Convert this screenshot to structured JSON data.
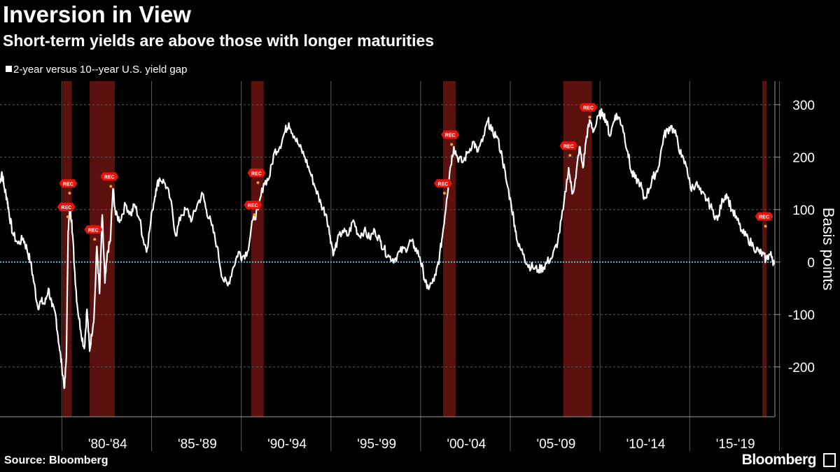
{
  "title": "Inversion in View",
  "subtitle": "Short-term yields are above those with longer maturities",
  "legend": {
    "label": "2-year versus 10--year U.S. yield gap"
  },
  "source": "Source: Bloomberg",
  "brand": "Bloomberg",
  "recession_label": "REC",
  "colors": {
    "background": "#000000",
    "line": "#ffffff",
    "zero_line": "#3fc6e0",
    "recession": "#6b1410",
    "marker": "#e8140c",
    "dot": "#f0a020"
  },
  "chart_data": {
    "type": "line",
    "title": "Inversion in View",
    "subtitle": "Short-term yields are above those with longer maturities",
    "ylabel": "Basis points",
    "xlabel": "",
    "ylim": [
      -295,
      345
    ],
    "xlim": [
      1976.5,
      2019.7
    ],
    "yticks": [
      -200,
      -100,
      0,
      100,
      200,
      300
    ],
    "ytick_labels": [
      "-200",
      "-100",
      "0",
      "100",
      "200",
      "300"
    ],
    "xtick_labels": [
      "'80-'84",
      "'85-'89",
      "'90-'94",
      "'95-'99",
      "'00-'04",
      "'05-'09",
      "'10-'14",
      "'15-'19"
    ],
    "zero_line": 0,
    "recessions": [
      [
        1980.0,
        1980.5
      ],
      [
        1981.5,
        1982.9
      ],
      [
        1990.5,
        1991.2
      ],
      [
        2001.2,
        2001.9
      ],
      [
        2007.9,
        2009.5
      ],
      [
        2019.0,
        2019.25
      ]
    ],
    "recession_markers": [
      {
        "x": 1980.3,
        "y": 150
      },
      {
        "x": 1980.2,
        "y": 105
      },
      {
        "x": 1981.7,
        "y": 62
      },
      {
        "x": 1982.6,
        "y": 163
      },
      {
        "x": 1990.6,
        "y": 109
      },
      {
        "x": 1990.8,
        "y": 170
      },
      {
        "x": 2001.2,
        "y": 150
      },
      {
        "x": 2001.6,
        "y": 243
      },
      {
        "x": 2008.2,
        "y": 222
      },
      {
        "x": 2009.3,
        "y": 295
      },
      {
        "x": 2019.1,
        "y": 87
      }
    ],
    "series": [
      {
        "name": "2-year versus 10--year U.S. yield gap",
        "points": [
          [
            1976.5,
            150
          ],
          [
            1976.6,
            172
          ],
          [
            1976.75,
            140
          ],
          [
            1976.9,
            120
          ],
          [
            1977.0,
            95
          ],
          [
            1977.2,
            55
          ],
          [
            1977.5,
            35
          ],
          [
            1977.8,
            45
          ],
          [
            1978.0,
            25
          ],
          [
            1978.2,
            0
          ],
          [
            1978.4,
            -40
          ],
          [
            1978.6,
            -85
          ],
          [
            1978.8,
            -75
          ],
          [
            1979.0,
            -80
          ],
          [
            1979.2,
            -50
          ],
          [
            1979.4,
            -85
          ],
          [
            1979.6,
            -100
          ],
          [
            1979.8,
            -160
          ],
          [
            1979.95,
            -200
          ],
          [
            1980.1,
            -240
          ],
          [
            1980.2,
            -180
          ],
          [
            1980.3,
            60
          ],
          [
            1980.4,
            100
          ],
          [
            1980.5,
            80
          ],
          [
            1980.65,
            -10
          ],
          [
            1980.8,
            -80
          ],
          [
            1981.0,
            -130
          ],
          [
            1981.2,
            -165
          ],
          [
            1981.35,
            -90
          ],
          [
            1981.5,
            -170
          ],
          [
            1981.6,
            -140
          ],
          [
            1981.75,
            -100
          ],
          [
            1981.9,
            30
          ],
          [
            1982.05,
            -60
          ],
          [
            1982.2,
            90
          ],
          [
            1982.35,
            -40
          ],
          [
            1982.5,
            20
          ],
          [
            1982.65,
            40
          ],
          [
            1982.8,
            140
          ],
          [
            1982.95,
            90
          ],
          [
            1983.2,
            80
          ],
          [
            1983.5,
            110
          ],
          [
            1983.8,
            90
          ],
          [
            1984.0,
            110
          ],
          [
            1984.3,
            80
          ],
          [
            1984.5,
            40
          ],
          [
            1984.7,
            25
          ],
          [
            1985.0,
            100
          ],
          [
            1985.2,
            140
          ],
          [
            1985.4,
            160
          ],
          [
            1985.7,
            150
          ],
          [
            1986.0,
            120
          ],
          [
            1986.3,
            50
          ],
          [
            1986.6,
            90
          ],
          [
            1986.9,
            100
          ],
          [
            1987.2,
            80
          ],
          [
            1987.5,
            110
          ],
          [
            1987.8,
            130
          ],
          [
            1988.0,
            100
          ],
          [
            1988.3,
            70
          ],
          [
            1988.6,
            30
          ],
          [
            1988.9,
            -30
          ],
          [
            1989.2,
            -45
          ],
          [
            1989.5,
            -10
          ],
          [
            1989.8,
            20
          ],
          [
            1990.0,
            10
          ],
          [
            1990.3,
            20
          ],
          [
            1990.6,
            80
          ],
          [
            1990.9,
            100
          ],
          [
            1991.2,
            150
          ],
          [
            1991.5,
            160
          ],
          [
            1991.8,
            210
          ],
          [
            1992.1,
            220
          ],
          [
            1992.4,
            250
          ],
          [
            1992.6,
            265
          ],
          [
            1992.9,
            240
          ],
          [
            1993.2,
            220
          ],
          [
            1993.5,
            200
          ],
          [
            1993.8,
            170
          ],
          [
            1994.1,
            140
          ],
          [
            1994.4,
            110
          ],
          [
            1994.7,
            90
          ],
          [
            1994.9,
            50
          ],
          [
            1995.1,
            15
          ],
          [
            1995.3,
            40
          ],
          [
            1995.6,
            60
          ],
          [
            1995.9,
            50
          ],
          [
            1996.2,
            80
          ],
          [
            1996.5,
            50
          ],
          [
            1996.8,
            60
          ],
          [
            1997.1,
            45
          ],
          [
            1997.4,
            60
          ],
          [
            1997.7,
            40
          ],
          [
            1997.9,
            25
          ],
          [
            1998.2,
            10
          ],
          [
            1998.5,
            5
          ],
          [
            1998.8,
            20
          ],
          [
            1999.1,
            25
          ],
          [
            1999.4,
            40
          ],
          [
            1999.6,
            30
          ],
          [
            1999.9,
            10
          ],
          [
            2000.1,
            -20
          ],
          [
            2000.3,
            -50
          ],
          [
            2000.6,
            -40
          ],
          [
            2000.8,
            -25
          ],
          [
            2001.0,
            10
          ],
          [
            2001.2,
            60
          ],
          [
            2001.4,
            120
          ],
          [
            2001.6,
            180
          ],
          [
            2001.8,
            220
          ],
          [
            2002.0,
            200
          ],
          [
            2002.3,
            190
          ],
          [
            2002.6,
            210
          ],
          [
            2002.9,
            230
          ],
          [
            2003.1,
            210
          ],
          [
            2003.4,
            230
          ],
          [
            2003.7,
            270
          ],
          [
            2003.9,
            250
          ],
          [
            2004.2,
            240
          ],
          [
            2004.5,
            200
          ],
          [
            2004.7,
            160
          ],
          [
            2005.0,
            110
          ],
          [
            2005.2,
            70
          ],
          [
            2005.4,
            30
          ],
          [
            2005.7,
            15
          ],
          [
            2005.9,
            -5
          ],
          [
            2006.2,
            -10
          ],
          [
            2006.5,
            -15
          ],
          [
            2006.8,
            -10
          ],
          [
            2007.0,
            0
          ],
          [
            2007.3,
            10
          ],
          [
            2007.6,
            40
          ],
          [
            2007.9,
            100
          ],
          [
            2008.2,
            180
          ],
          [
            2008.4,
            130
          ],
          [
            2008.6,
            160
          ],
          [
            2008.8,
            220
          ],
          [
            2009.0,
            180
          ],
          [
            2009.2,
            240
          ],
          [
            2009.4,
            270
          ],
          [
            2009.6,
            250
          ],
          [
            2009.9,
            280
          ],
          [
            2010.1,
            285
          ],
          [
            2010.3,
            270
          ],
          [
            2010.5,
            240
          ],
          [
            2010.8,
            280
          ],
          [
            2011.0,
            275
          ],
          [
            2011.2,
            260
          ],
          [
            2011.5,
            210
          ],
          [
            2011.7,
            170
          ],
          [
            2011.9,
            160
          ],
          [
            2012.2,
            150
          ],
          [
            2012.4,
            120
          ],
          [
            2012.7,
            140
          ],
          [
            2012.9,
            160
          ],
          [
            2013.2,
            180
          ],
          [
            2013.5,
            240
          ],
          [
            2013.7,
            250
          ],
          [
            2013.9,
            260
          ],
          [
            2014.2,
            240
          ],
          [
            2014.5,
            200
          ],
          [
            2014.8,
            180
          ],
          [
            2015.0,
            140
          ],
          [
            2015.3,
            150
          ],
          [
            2015.6,
            130
          ],
          [
            2015.9,
            120
          ],
          [
            2016.2,
            100
          ],
          [
            2016.5,
            80
          ],
          [
            2016.8,
            120
          ],
          [
            2017.0,
            130
          ],
          [
            2017.3,
            100
          ],
          [
            2017.6,
            80
          ],
          [
            2017.9,
            55
          ],
          [
            2018.2,
            45
          ],
          [
            2018.5,
            30
          ],
          [
            2018.8,
            20
          ],
          [
            2019.0,
            15
          ],
          [
            2019.2,
            5
          ],
          [
            2019.4,
            15
          ],
          [
            2019.55,
            10
          ],
          [
            2019.65,
            -5
          ]
        ]
      }
    ]
  }
}
